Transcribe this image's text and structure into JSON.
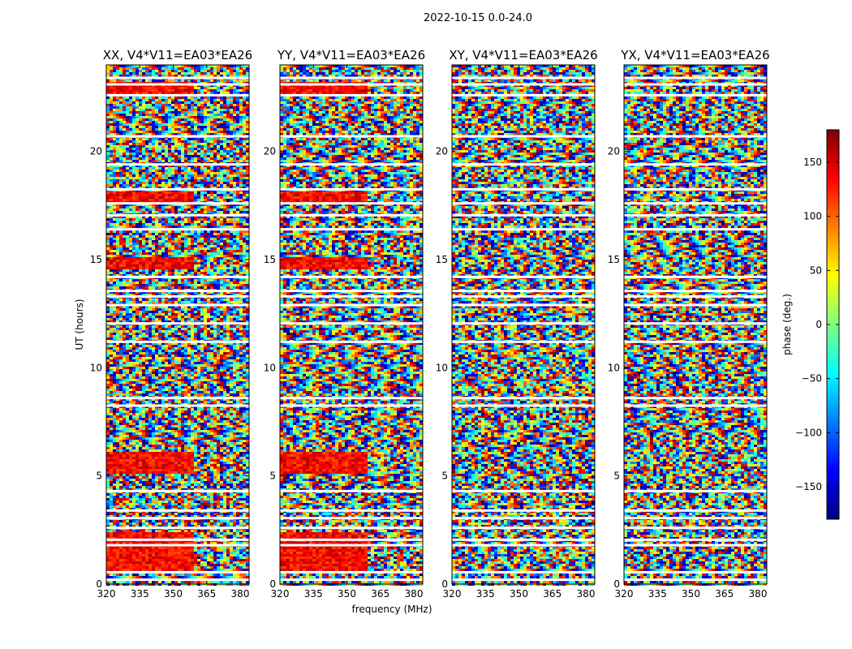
{
  "figure": {
    "suptitle": "2022-10-15 0.0-24.0"
  },
  "chart_data": {
    "type": "heatmap",
    "panels": [
      {
        "title": "XX, V4*V11=EA03*EA26"
      },
      {
        "title": "YY, V4*V11=EA03*EA26"
      },
      {
        "title": "XY, V4*V11=EA03*EA26"
      },
      {
        "title": "YX, V4*V11=EA03*EA26"
      }
    ],
    "xlabel": "frequency (MHz)",
    "ylabel": "UT (hours)",
    "xlim": [
      320,
      384
    ],
    "ylim": [
      0,
      24
    ],
    "xticks": [
      320,
      335,
      350,
      365,
      380
    ],
    "yticks": [
      0,
      5,
      10,
      15,
      20
    ],
    "colorbar": {
      "label": "phase (deg.)",
      "range": [
        -180,
        180
      ],
      "ticks": [
        -150,
        -100,
        -50,
        0,
        50,
        100,
        150
      ],
      "tick_labels": [
        "−150",
        "−100",
        "−50",
        "0",
        "50",
        "100",
        "150"
      ],
      "colormap": [
        "#00007f",
        "#0000ff",
        "#007fff",
        "#00ffff",
        "#7fff7f",
        "#ffff00",
        "#ff7f00",
        "#ff0000",
        "#7f0000"
      ]
    },
    "flagged_gaps_hours": [
      0.2,
      0.55,
      1.8,
      2.05,
      2.6,
      3.05,
      3.4,
      4.3,
      8.25,
      8.6,
      11.2,
      12.05,
      12.9,
      13.3,
      13.55,
      14.2,
      16.4,
      17.05,
      17.6,
      18.25,
      19.4,
      20.7,
      22.6,
      23.1,
      23.4
    ]
  }
}
